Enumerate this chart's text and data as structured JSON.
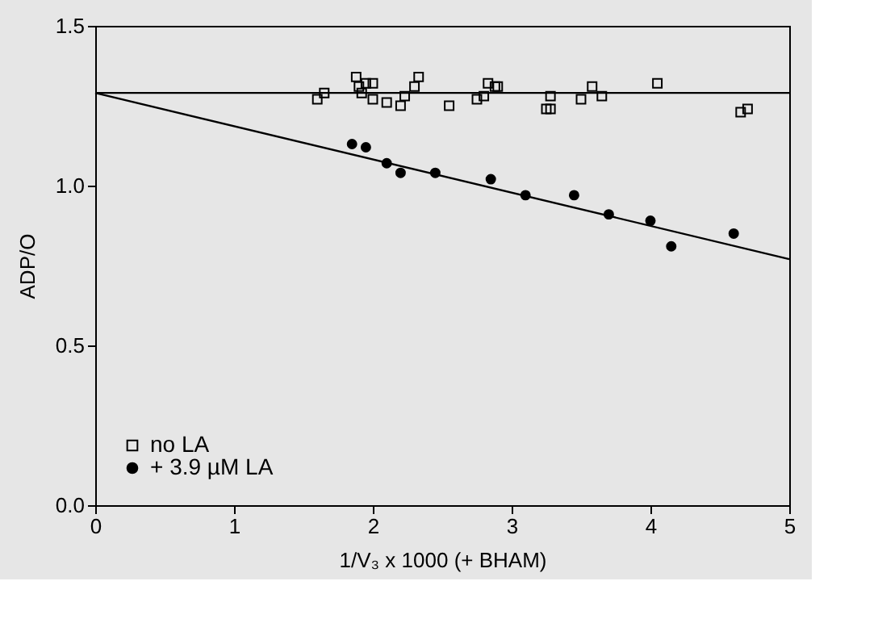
{
  "chart_data": {
    "type": "scatter",
    "xlabel": "1/V₃ x 1000 (+ BHAM)",
    "ylabel": "ADP/O",
    "xlim": [
      0,
      5
    ],
    "ylim": [
      0,
      1.5
    ],
    "xticks": [
      0,
      1,
      2,
      3,
      4,
      5
    ],
    "yticks": [
      {
        "value": 0,
        "label": "0.0"
      },
      {
        "value": 0.5,
        "label": "0.5"
      },
      {
        "value": 1,
        "label": "1.0"
      },
      {
        "value": 1.5,
        "label": "1.5"
      }
    ],
    "grid": false,
    "legend": "bottom left",
    "series": [
      {
        "name": "no LA",
        "color": "#000000",
        "marker": "square",
        "x": [
          1.6,
          1.65,
          1.88,
          1.9,
          1.92,
          1.95,
          2.0,
          2.0,
          2.1,
          2.2,
          2.23,
          2.3,
          2.33,
          2.55,
          2.75,
          2.8,
          2.83,
          2.88,
          2.9,
          3.25,
          3.28,
          3.28,
          3.5,
          3.58,
          3.65,
          4.05,
          4.65,
          4.7
        ],
        "values": [
          1.27,
          1.29,
          1.34,
          1.31,
          1.29,
          1.32,
          1.32,
          1.27,
          1.26,
          1.25,
          1.28,
          1.31,
          1.34,
          1.25,
          1.27,
          1.28,
          1.32,
          1.31,
          1.31,
          1.24,
          1.24,
          1.28,
          1.27,
          1.31,
          1.28,
          1.32,
          1.23,
          1.24
        ]
      },
      {
        "name": "+ 3.9 µM LA",
        "color": "#000000",
        "marker": "circle",
        "x": [
          1.85,
          1.95,
          2.1,
          2.2,
          2.45,
          2.85,
          3.1,
          3.45,
          3.7,
          4.0,
          4.15,
          4.6
        ],
        "values": [
          1.13,
          1.12,
          1.07,
          1.04,
          1.04,
          1.02,
          0.97,
          0.97,
          0.91,
          0.89,
          0.81,
          0.85
        ]
      },
      {
        "type": "line",
        "color": "#000000",
        "x": [
          0,
          5
        ],
        "values": [
          1.29,
          1.29
        ]
      },
      {
        "type": "line",
        "color": "#000000",
        "x": [
          0,
          5
        ],
        "values": [
          1.29,
          0.77
        ]
      }
    ]
  }
}
